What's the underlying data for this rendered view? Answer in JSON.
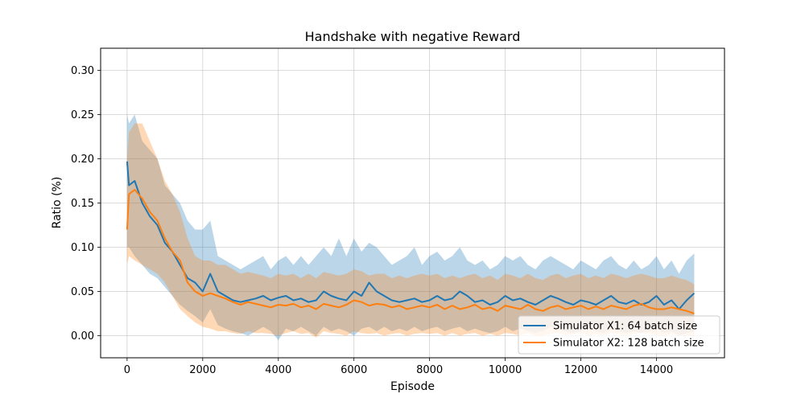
{
  "chart_data": {
    "type": "line",
    "title": "Handshake with negative Reward",
    "xlabel": "Episode",
    "ylabel": "Ratio (%)",
    "xlim": [
      -700,
      15800
    ],
    "ylim": [
      -0.025,
      0.325
    ],
    "xticks": [
      0,
      2000,
      4000,
      6000,
      8000,
      10000,
      12000,
      14000
    ],
    "yticks": [
      0.0,
      0.05,
      0.1,
      0.15,
      0.2,
      0.25,
      0.3
    ],
    "xtick_labels": [
      "0",
      "2000",
      "4000",
      "6000",
      "8000",
      "10000",
      "12000",
      "14000"
    ],
    "ytick_labels": [
      "0.00",
      "0.05",
      "0.10",
      "0.15",
      "0.20",
      "0.25",
      "0.30"
    ],
    "grid": true,
    "legend_position": "lower-right",
    "series": [
      {
        "name": "Simulator X1: 64 batch size",
        "color": "#1f77b4",
        "x": [
          0,
          50,
          200,
          400,
          600,
          800,
          1000,
          1200,
          1400,
          1600,
          1800,
          2000,
          2200,
          2400,
          2600,
          2800,
          3000,
          3200,
          3400,
          3600,
          3800,
          4000,
          4200,
          4400,
          4600,
          4800,
          5000,
          5200,
          5400,
          5600,
          5800,
          6000,
          6200,
          6400,
          6600,
          6800,
          7000,
          7200,
          7400,
          7600,
          7800,
          8000,
          8200,
          8400,
          8600,
          8800,
          9000,
          9200,
          9400,
          9600,
          9800,
          10000,
          10200,
          10400,
          10600,
          10800,
          11000,
          11200,
          11400,
          11600,
          11800,
          12000,
          12200,
          12400,
          12600,
          12800,
          13000,
          13200,
          13400,
          13600,
          13800,
          14000,
          14200,
          14400,
          14600,
          14800,
          15000
        ],
        "y": [
          0.197,
          0.17,
          0.175,
          0.15,
          0.135,
          0.125,
          0.105,
          0.095,
          0.08,
          0.065,
          0.06,
          0.05,
          0.07,
          0.05,
          0.045,
          0.04,
          0.038,
          0.04,
          0.042,
          0.045,
          0.04,
          0.043,
          0.045,
          0.04,
          0.042,
          0.038,
          0.04,
          0.05,
          0.045,
          0.042,
          0.04,
          0.05,
          0.045,
          0.06,
          0.05,
          0.045,
          0.04,
          0.038,
          0.04,
          0.042,
          0.038,
          0.04,
          0.045,
          0.04,
          0.042,
          0.05,
          0.045,
          0.038,
          0.04,
          0.035,
          0.038,
          0.045,
          0.04,
          0.042,
          0.038,
          0.035,
          0.04,
          0.045,
          0.042,
          0.038,
          0.035,
          0.04,
          0.038,
          0.035,
          0.04,
          0.045,
          0.038,
          0.036,
          0.04,
          0.035,
          0.038,
          0.045,
          0.035,
          0.04,
          0.03,
          0.04,
          0.048
        ],
        "lower": [
          0.1,
          0.1,
          0.09,
          0.08,
          0.07,
          0.065,
          0.055,
          0.045,
          0.035,
          0.028,
          0.022,
          0.015,
          0.03,
          0.012,
          0.008,
          0.005,
          0.003,
          0.0,
          0.005,
          0.01,
          0.005,
          -0.005,
          0.008,
          0.005,
          0.01,
          0.005,
          0.0,
          0.01,
          0.005,
          0.008,
          0.005,
          0.0,
          0.008,
          0.01,
          0.005,
          0.01,
          0.005,
          0.008,
          0.005,
          0.01,
          0.005,
          0.008,
          0.01,
          0.005,
          0.008,
          0.01,
          0.005,
          0.008,
          0.005,
          0.003,
          0.005,
          0.01,
          0.005,
          0.008,
          0.005,
          0.003,
          0.005,
          0.01,
          0.008,
          0.005,
          0.003,
          0.005,
          0.008,
          0.005,
          0.003,
          0.008,
          0.005,
          0.003,
          0.005,
          0.003,
          0.005,
          0.008,
          0.003,
          0.005,
          0.0,
          0.003,
          0.005
        ],
        "upper": [
          0.25,
          0.24,
          0.25,
          0.22,
          0.21,
          0.2,
          0.17,
          0.16,
          0.15,
          0.13,
          0.12,
          0.12,
          0.13,
          0.09,
          0.085,
          0.08,
          0.075,
          0.08,
          0.085,
          0.09,
          0.075,
          0.085,
          0.09,
          0.08,
          0.09,
          0.08,
          0.09,
          0.1,
          0.09,
          0.11,
          0.09,
          0.11,
          0.095,
          0.105,
          0.1,
          0.09,
          0.08,
          0.085,
          0.09,
          0.1,
          0.08,
          0.09,
          0.095,
          0.085,
          0.09,
          0.1,
          0.085,
          0.08,
          0.085,
          0.075,
          0.08,
          0.09,
          0.085,
          0.09,
          0.08,
          0.075,
          0.085,
          0.09,
          0.085,
          0.08,
          0.075,
          0.085,
          0.08,
          0.075,
          0.085,
          0.09,
          0.08,
          0.075,
          0.085,
          0.075,
          0.08,
          0.09,
          0.075,
          0.085,
          0.07,
          0.085,
          0.093
        ]
      },
      {
        "name": "Simulator X2: 128 batch size",
        "color": "#ff7f0e",
        "x": [
          0,
          50,
          200,
          400,
          600,
          800,
          1000,
          1200,
          1400,
          1600,
          1800,
          2000,
          2200,
          2400,
          2600,
          2800,
          3000,
          3200,
          3400,
          3600,
          3800,
          4000,
          4200,
          4400,
          4600,
          4800,
          5000,
          5200,
          5400,
          5600,
          5800,
          6000,
          6200,
          6400,
          6600,
          6800,
          7000,
          7200,
          7400,
          7600,
          7800,
          8000,
          8200,
          8400,
          8600,
          8800,
          9000,
          9200,
          9400,
          9600,
          9800,
          10000,
          10200,
          10400,
          10600,
          10800,
          11000,
          11200,
          11400,
          11600,
          11800,
          12000,
          12200,
          12400,
          12600,
          12800,
          13000,
          13200,
          13400,
          13600,
          13800,
          14000,
          14200,
          14400,
          14600,
          14800,
          15000
        ],
        "y": [
          0.12,
          0.16,
          0.165,
          0.155,
          0.14,
          0.13,
          0.11,
          0.095,
          0.085,
          0.06,
          0.05,
          0.045,
          0.048,
          0.045,
          0.042,
          0.038,
          0.035,
          0.038,
          0.036,
          0.034,
          0.032,
          0.035,
          0.034,
          0.036,
          0.032,
          0.034,
          0.03,
          0.036,
          0.034,
          0.032,
          0.035,
          0.04,
          0.038,
          0.034,
          0.036,
          0.035,
          0.032,
          0.034,
          0.03,
          0.032,
          0.034,
          0.032,
          0.035,
          0.03,
          0.034,
          0.03,
          0.032,
          0.035,
          0.03,
          0.032,
          0.028,
          0.034,
          0.032,
          0.03,
          0.035,
          0.03,
          0.028,
          0.032,
          0.034,
          0.03,
          0.032,
          0.034,
          0.03,
          0.033,
          0.03,
          0.034,
          0.032,
          0.03,
          0.034,
          0.036,
          0.032,
          0.03,
          0.03,
          0.032,
          0.03,
          0.028,
          0.025
        ],
        "lower": [
          0.08,
          0.09,
          0.085,
          0.08,
          0.075,
          0.07,
          0.06,
          0.045,
          0.03,
          0.022,
          0.015,
          0.01,
          0.008,
          0.005,
          0.005,
          0.003,
          0.002,
          0.005,
          0.003,
          0.003,
          0.002,
          0.0,
          0.003,
          0.005,
          0.002,
          0.003,
          -0.002,
          0.005,
          0.003,
          0.002,
          0.0,
          0.005,
          0.003,
          0.002,
          0.003,
          0.0,
          0.002,
          0.003,
          0.0,
          0.002,
          0.003,
          0.002,
          0.003,
          0.0,
          0.003,
          0.0,
          0.002,
          0.003,
          0.0,
          0.002,
          0.0,
          0.003,
          0.002,
          0.0,
          0.003,
          0.0,
          0.0,
          0.002,
          0.003,
          0.0,
          0.002,
          0.003,
          0.0,
          0.002,
          0.0,
          0.003,
          0.002,
          0.0,
          0.002,
          0.003,
          0.002,
          0.0,
          0.0,
          0.002,
          0.0,
          0.0,
          0.0
        ],
        "upper": [
          0.2,
          0.23,
          0.24,
          0.24,
          0.22,
          0.2,
          0.175,
          0.16,
          0.14,
          0.11,
          0.09,
          0.085,
          0.085,
          0.08,
          0.08,
          0.075,
          0.07,
          0.072,
          0.07,
          0.068,
          0.065,
          0.07,
          0.068,
          0.07,
          0.065,
          0.07,
          0.065,
          0.072,
          0.07,
          0.068,
          0.07,
          0.075,
          0.073,
          0.068,
          0.07,
          0.07,
          0.065,
          0.068,
          0.065,
          0.068,
          0.07,
          0.068,
          0.07,
          0.065,
          0.068,
          0.065,
          0.068,
          0.07,
          0.065,
          0.068,
          0.063,
          0.07,
          0.068,
          0.065,
          0.07,
          0.065,
          0.063,
          0.068,
          0.07,
          0.065,
          0.068,
          0.07,
          0.065,
          0.068,
          0.065,
          0.07,
          0.068,
          0.065,
          0.068,
          0.07,
          0.068,
          0.065,
          0.065,
          0.068,
          0.065,
          0.063,
          0.058
        ]
      }
    ]
  }
}
